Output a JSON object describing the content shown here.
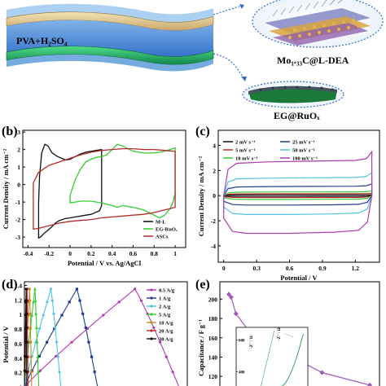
{
  "schematic": {
    "electrolyte_label": "PVA+H₂SO₄",
    "top_material_label": "Mo₁.₃₃C@L-DEA",
    "bottom_material_label": "EG@RuOₓ"
  },
  "panels": {
    "b": "(b)",
    "c": "(c)",
    "d": "(d)",
    "e": "(e)"
  },
  "chart_data": [
    {
      "id": "b",
      "type": "line",
      "xlabel": "Potential / V vs. Ag/AgCl",
      "ylabel": "Current Density / mA cm⁻²",
      "xlim": [
        -0.45,
        1.1
      ],
      "ylim": [
        -3.6,
        3.1
      ],
      "xticks": [
        -0.4,
        -0.2,
        0.0,
        0.2,
        0.4,
        0.6,
        0.8,
        1.0
      ],
      "yticks": [
        -3,
        -2,
        -1,
        0,
        1,
        2,
        3
      ],
      "legend_position": "bottom-right",
      "series": [
        {
          "name": "M-L",
          "color": "#111111",
          "x": [
            -0.3,
            -0.29,
            -0.27,
            -0.24,
            -0.21,
            -0.17,
            -0.12,
            -0.08,
            -0.04,
            0.0,
            0.05,
            0.1,
            0.15,
            0.2,
            0.25,
            0.3,
            0.3,
            0.28,
            0.24,
            0.2,
            0.15,
            0.1,
            0.05,
            0.0,
            -0.05,
            -0.1,
            -0.14,
            -0.18,
            -0.22,
            -0.25,
            -0.28,
            -0.3,
            -0.3
          ],
          "y": [
            -1.0,
            0.5,
            1.8,
            2.3,
            2.2,
            1.8,
            1.6,
            1.5,
            1.4,
            1.45,
            1.6,
            1.75,
            1.85,
            1.9,
            1.95,
            2.0,
            -1.2,
            -1.5,
            -1.6,
            -1.7,
            -1.75,
            -1.8,
            -1.85,
            -1.9,
            -1.95,
            -2.05,
            -2.2,
            -2.45,
            -2.65,
            -2.8,
            -3.0,
            -3.05,
            -1.0
          ]
        },
        {
          "name": "EG-RuOₓ",
          "color": "#33cc33",
          "x": [
            0.0,
            0.05,
            0.1,
            0.15,
            0.2,
            0.25,
            0.3,
            0.35,
            0.4,
            0.45,
            0.5,
            0.6,
            0.7,
            0.8,
            0.9,
            0.95,
            1.0,
            1.0,
            0.98,
            0.95,
            0.9,
            0.85,
            0.8,
            0.7,
            0.6,
            0.5,
            0.45,
            0.4,
            0.3,
            0.2,
            0.1,
            0.05,
            0.0,
            0.0
          ],
          "y": [
            -0.6,
            0.3,
            0.9,
            1.3,
            1.45,
            1.55,
            1.6,
            1.7,
            2.0,
            2.3,
            2.2,
            1.9,
            1.8,
            1.8,
            1.9,
            2.0,
            2.1,
            -0.5,
            -1.0,
            -1.4,
            -1.75,
            -1.9,
            -1.75,
            -1.45,
            -1.3,
            -1.2,
            -1.3,
            -1.2,
            -1.05,
            -0.95,
            -0.95,
            -1.0,
            -1.05,
            -0.6
          ]
        },
        {
          "name": "ASCs",
          "color": "#b32a2a",
          "x": [
            -0.35,
            -0.3,
            -0.2,
            -0.1,
            0.0,
            0.1,
            0.2,
            0.3,
            0.4,
            0.5,
            0.6,
            0.7,
            0.8,
            0.9,
            1.0,
            1.0,
            0.9,
            0.8,
            0.7,
            0.6,
            0.5,
            0.4,
            0.3,
            0.2,
            0.1,
            0.0,
            -0.1,
            -0.2,
            -0.3,
            -0.35,
            -0.35
          ],
          "y": [
            0.1,
            0.7,
            1.1,
            1.3,
            1.5,
            1.7,
            1.85,
            1.95,
            2.0,
            2.05,
            2.05,
            2.0,
            2.0,
            1.95,
            1.9,
            -1.3,
            -1.45,
            -1.6,
            -1.7,
            -1.75,
            -1.8,
            -1.85,
            -1.9,
            -2.0,
            -2.05,
            -2.1,
            -2.2,
            -2.35,
            -2.5,
            -2.55,
            0.1
          ]
        }
      ]
    },
    {
      "id": "c",
      "type": "line",
      "xlabel": "Potential / V",
      "ylabel": "Current Density / mA cm⁻²",
      "xlim": [
        -0.05,
        1.42
      ],
      "ylim": [
        -5.3,
        5.2
      ],
      "xticks": [
        0.0,
        0.3,
        0.6,
        0.9,
        1.2
      ],
      "yticks": [
        -4,
        -2,
        0,
        2,
        4
      ],
      "legend_position": "top-left",
      "legend_entries": [
        "2 mV s⁻¹",
        "5 mV s⁻¹",
        "10 mV s⁻¹",
        "25 mV s⁻¹",
        "50 mV s⁻¹",
        "100 mV s⁻¹"
      ],
      "series": [
        {
          "name": "2 mV s⁻¹",
          "color": "#111111",
          "top": 0.06,
          "bottom": -0.06
        },
        {
          "name": "5 mV s⁻¹",
          "color": "#b32a2a",
          "top": 0.15,
          "bottom": -0.15
        },
        {
          "name": "10 mV s⁻¹",
          "color": "#33cc33",
          "top": 0.3,
          "bottom": -0.3
        },
        {
          "name": "25 mV s⁻¹",
          "color": "#1f3f8f",
          "top": 0.75,
          "bottom": -0.75
        },
        {
          "name": "50 mV s⁻¹",
          "color": "#4fc4e0",
          "top": 1.45,
          "bottom": -1.5
        },
        {
          "name": "100 mV s⁻¹",
          "color": "#b03ab0",
          "top": 2.8,
          "bottom": -3.0
        }
      ]
    },
    {
      "id": "d",
      "type": "line",
      "ylabel": "Potential / V",
      "ylim": [
        -0.05,
        1.45
      ],
      "yticks": [
        0.0,
        0.2,
        0.4,
        0.6,
        0.8,
        1.0,
        1.2,
        1.4
      ],
      "legend_position": "top-right",
      "series": [
        {
          "name": "0.5 A/g",
          "color": "#b03ab0",
          "peak_time": 400,
          "end_time": 560
        },
        {
          "name": "1 A/g",
          "color": "#1f3f8f",
          "peak_time": 190,
          "end_time": 265
        },
        {
          "name": "2 A/g",
          "color": "#4fc4e0",
          "peak_time": 96,
          "end_time": 132
        },
        {
          "name": "5 A/g",
          "color": "#33cc33",
          "peak_time": 38,
          "end_time": 52
        },
        {
          "name": "10 A/g",
          "color": "#c48a2a",
          "peak_time": 19,
          "end_time": 26
        },
        {
          "name": "20 A/g",
          "color": "#b32a2a",
          "peak_time": 9.5,
          "end_time": 13
        },
        {
          "name": "30 A/g",
          "color": "#111111",
          "peak_time": 6.3,
          "end_time": 8.6
        }
      ],
      "vmax": 1.35
    },
    {
      "id": "e",
      "type": "line",
      "ylabel": "Capacitance / F g⁻¹",
      "ylim": [
        105,
        218
      ],
      "yticks": [
        120,
        140,
        160,
        180,
        200
      ],
      "series": [
        {
          "name": "capacitance",
          "color": "#9b59b6",
          "x": [
            0.5,
            1,
            2,
            5,
            10,
            20,
            30
          ],
          "y": [
            205,
            202,
            185,
            165,
            150,
            124,
            111
          ]
        }
      ],
      "inset": {
        "ylabel": "-Z'' / Ω",
        "xlabel": "Z' / Ω",
        "yticks": [
          400,
          600
        ],
        "ylabel2": "-Z'' / Ω"
      }
    }
  ]
}
